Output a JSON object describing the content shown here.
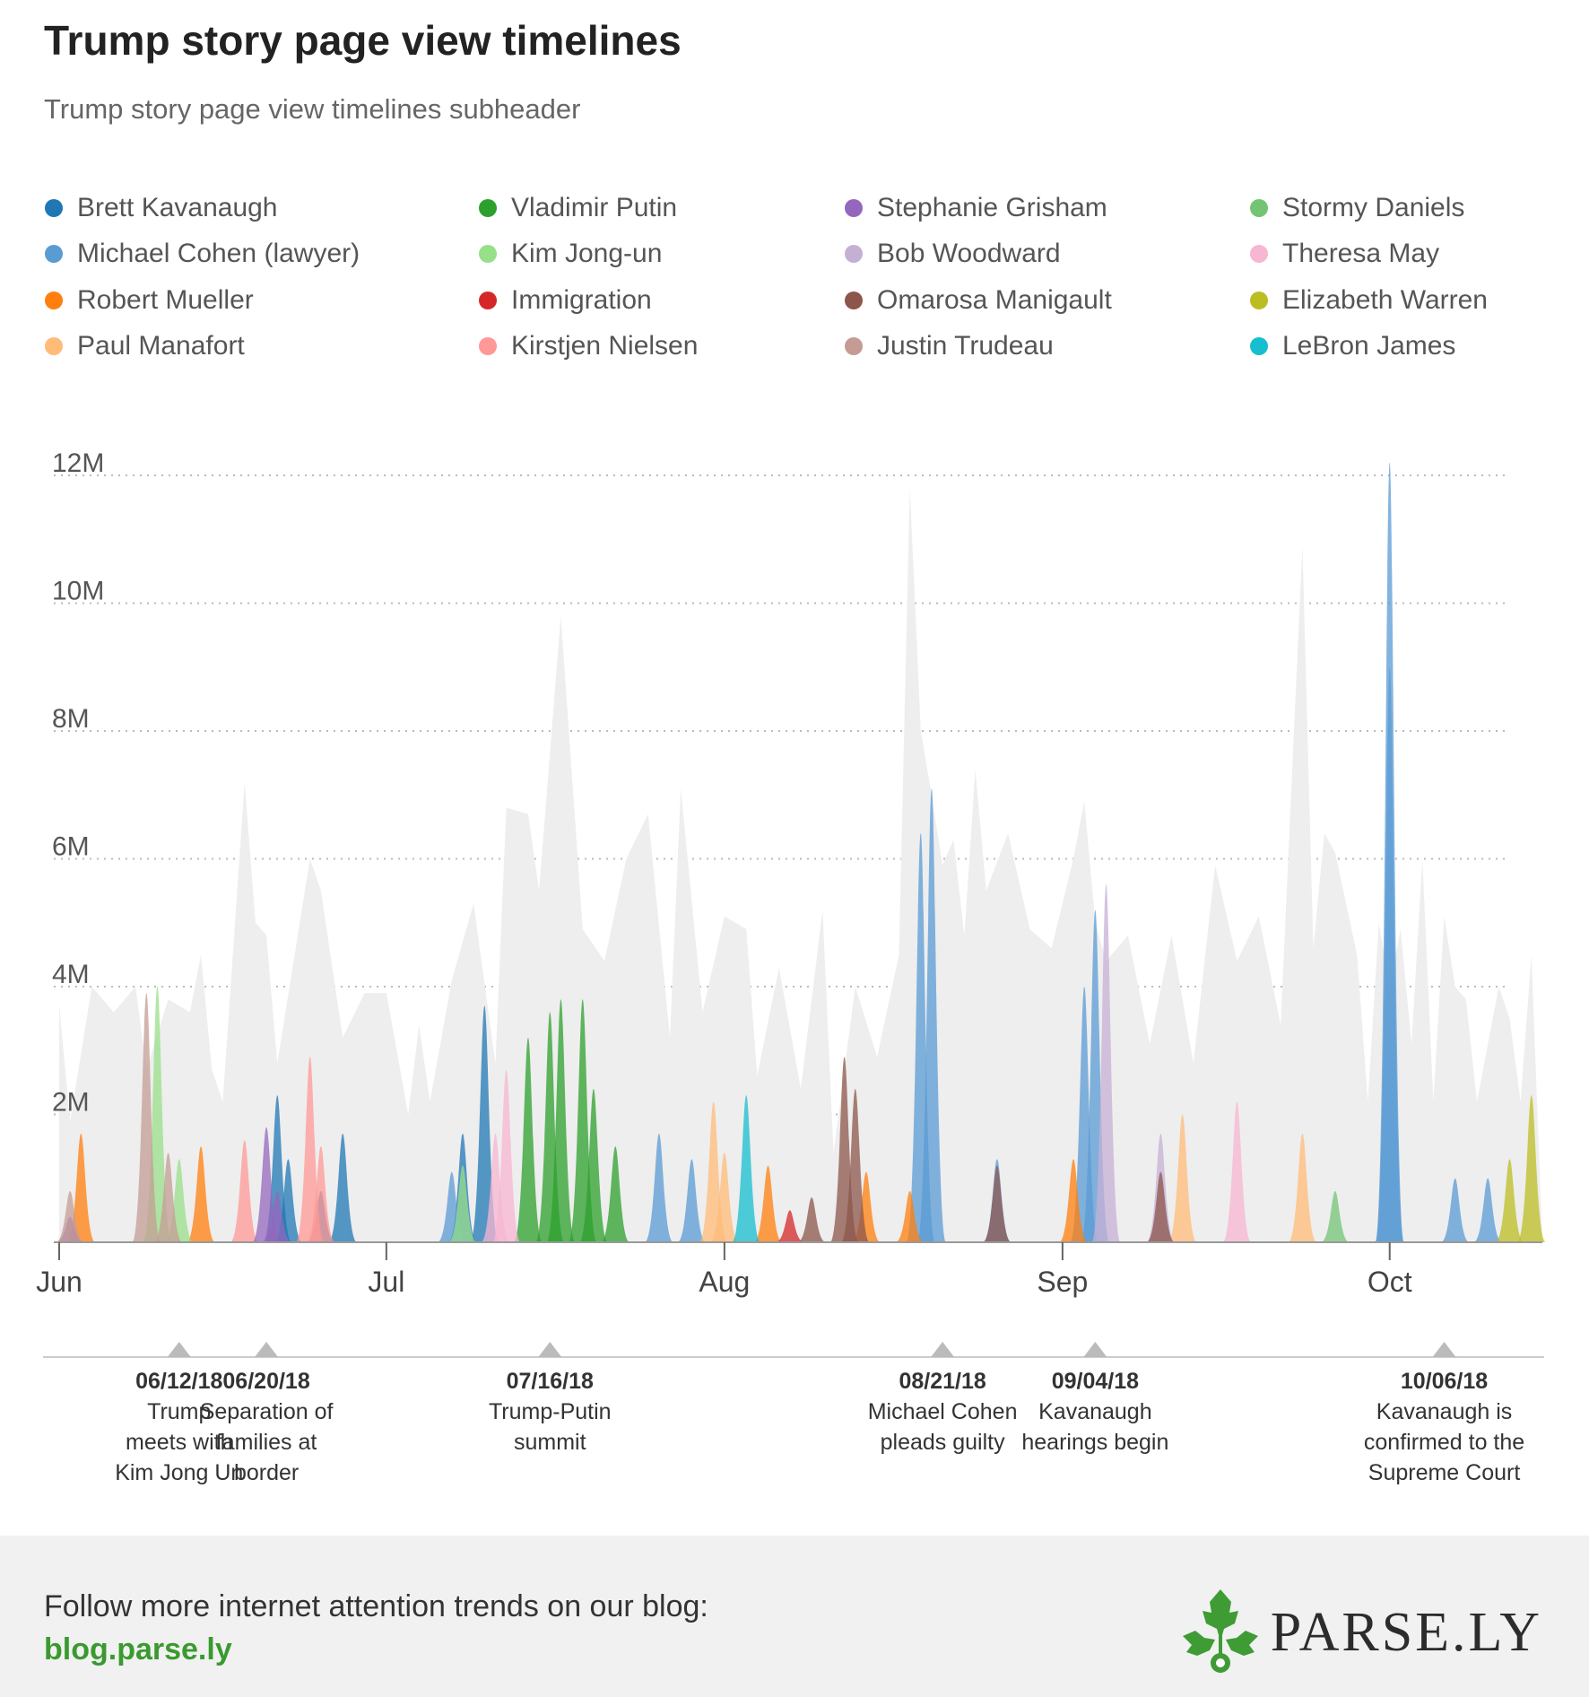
{
  "title": "Trump story page view timelines",
  "subtitle": "Trump story page view timelines subheader",
  "footer": {
    "text": "Follow more internet attention trends on our blog:",
    "link": "blog.parse.ly",
    "brand": "PARSE.LY",
    "brand_icon": "parsley-leaf-icon"
  },
  "colors": {
    "background_total": "#eeeeee",
    "grid": "#bbbbbb",
    "axis": "#999999",
    "link": "#3a9a2f"
  },
  "chart_data": {
    "type": "area",
    "title": "Trump story page view timelines",
    "xlabel": "",
    "ylabel": "",
    "x_range": [
      "2018-06-01",
      "2018-10-15"
    ],
    "ylim": [
      0,
      12000000
    ],
    "y_ticks": [
      {
        "value": 2000000,
        "label": "2M"
      },
      {
        "value": 4000000,
        "label": "4M"
      },
      {
        "value": 6000000,
        "label": "6M"
      },
      {
        "value": 8000000,
        "label": "8M"
      },
      {
        "value": 10000000,
        "label": "10M"
      },
      {
        "value": 12000000,
        "label": "12M"
      }
    ],
    "x_ticks": [
      {
        "date": "2018-06-01",
        "label": "Jun"
      },
      {
        "date": "2018-07-01",
        "label": "Jul"
      },
      {
        "date": "2018-08-01",
        "label": "Aug"
      },
      {
        "date": "2018-09-01",
        "label": "Sep"
      },
      {
        "date": "2018-10-01",
        "label": "Oct"
      }
    ],
    "grid": true,
    "legend_position": "top",
    "total": {
      "x": [
        "2018-06-01",
        "2018-06-02",
        "2018-06-04",
        "2018-06-06",
        "2018-06-08",
        "2018-06-09",
        "2018-06-11",
        "2018-06-13",
        "2018-06-14",
        "2018-06-15",
        "2018-06-16",
        "2018-06-18",
        "2018-06-19",
        "2018-06-20",
        "2018-06-21",
        "2018-06-24",
        "2018-06-25",
        "2018-06-27",
        "2018-06-29",
        "2018-07-01",
        "2018-07-03",
        "2018-07-04",
        "2018-07-05",
        "2018-07-07",
        "2018-07-09",
        "2018-07-11",
        "2018-07-12",
        "2018-07-14",
        "2018-07-15",
        "2018-07-17",
        "2018-07-19",
        "2018-07-21",
        "2018-07-23",
        "2018-07-25",
        "2018-07-27",
        "2018-07-28",
        "2018-07-30",
        "2018-08-01",
        "2018-08-03",
        "2018-08-04",
        "2018-08-06",
        "2018-08-08",
        "2018-08-10",
        "2018-08-11",
        "2018-08-13",
        "2018-08-15",
        "2018-08-17",
        "2018-08-18",
        "2018-08-19",
        "2018-08-20",
        "2018-08-21",
        "2018-08-22",
        "2018-08-23",
        "2018-08-24",
        "2018-08-25",
        "2018-08-27",
        "2018-08-29",
        "2018-08-31",
        "2018-09-02",
        "2018-09-03",
        "2018-09-04",
        "2018-09-05",
        "2018-09-07",
        "2018-09-09",
        "2018-09-11",
        "2018-09-13",
        "2018-09-15",
        "2018-09-17",
        "2018-09-19",
        "2018-09-21",
        "2018-09-23",
        "2018-09-24",
        "2018-09-25",
        "2018-09-26",
        "2018-09-28",
        "2018-09-29",
        "2018-09-30",
        "2018-10-01",
        "2018-10-02",
        "2018-10-03",
        "2018-10-04",
        "2018-10-05",
        "2018-10-06",
        "2018-10-07",
        "2018-10-08",
        "2018-10-09",
        "2018-10-11",
        "2018-10-12",
        "2018-10-13",
        "2018-10-14",
        "2018-10-15"
      ],
      "values": [
        3700000,
        1900000,
        4000000,
        3600000,
        4000000,
        2700000,
        3800000,
        3600000,
        4500000,
        2700000,
        2200000,
        7200000,
        5000000,
        4800000,
        2800000,
        6000000,
        5500000,
        3200000,
        3900000,
        3900000,
        2000000,
        3400000,
        2200000,
        4100000,
        5300000,
        2800000,
        6800000,
        6700000,
        5500000,
        9800000,
        4900000,
        4400000,
        6000000,
        6700000,
        3200000,
        7100000,
        3600000,
        5100000,
        4900000,
        2600000,
        4300000,
        2400000,
        5200000,
        1400000,
        4000000,
        2900000,
        4500000,
        11800000,
        8000000,
        7000000,
        5900000,
        6300000,
        4800000,
        7400000,
        5500000,
        6400000,
        4900000,
        4600000,
        6000000,
        6900000,
        5000000,
        4400000,
        4800000,
        3100000,
        4800000,
        2800000,
        5900000,
        4400000,
        5100000,
        3400000,
        10900000,
        4600000,
        6400000,
        6100000,
        4500000,
        2200000,
        5000000,
        4000000,
        4900000,
        3100000,
        6000000,
        2200000,
        5100000,
        4000000,
        3800000,
        2200000,
        4000000,
        3500000,
        2200000,
        4500000,
        0
      ]
    },
    "series": [
      {
        "name": "Brett Kavanaugh",
        "color": "#1f77b4",
        "peaks": [
          [
            "2018-06-21",
            2300000
          ],
          [
            "2018-06-22",
            1300000
          ],
          [
            "2018-06-25",
            800000
          ],
          [
            "2018-06-27",
            1700000
          ],
          [
            "2018-07-10",
            3700000
          ],
          [
            "2018-07-08",
            1700000
          ]
        ]
      },
      {
        "name": "Michael Cohen (lawyer)",
        "color": "#5a9bd4",
        "peaks": [
          [
            "2018-07-07",
            1100000
          ],
          [
            "2018-07-26",
            1700000
          ],
          [
            "2018-07-29",
            1300000
          ],
          [
            "2018-08-19",
            6400000
          ],
          [
            "2018-08-20",
            7100000
          ],
          [
            "2018-08-26",
            1300000
          ],
          [
            "2018-09-04",
            5200000
          ],
          [
            "2018-09-03",
            4000000
          ],
          [
            "2018-10-01",
            9000000
          ],
          [
            "2018-10-01",
            12200000
          ],
          [
            "2018-10-07",
            1000000
          ],
          [
            "2018-10-10",
            1000000
          ]
        ]
      },
      {
        "name": "Robert Mueller",
        "color": "#ff7f0e",
        "peaks": [
          [
            "2018-06-03",
            1700000
          ],
          [
            "2018-06-14",
            1500000
          ],
          [
            "2018-08-05",
            1200000
          ],
          [
            "2018-08-14",
            1100000
          ],
          [
            "2018-08-18",
            800000
          ],
          [
            "2018-09-02",
            1300000
          ]
        ]
      },
      {
        "name": "Paul Manafort",
        "color": "#ffbb78",
        "peaks": [
          [
            "2018-07-31",
            2200000
          ],
          [
            "2018-08-01",
            1400000
          ],
          [
            "2018-09-12",
            2000000
          ],
          [
            "2018-09-23",
            1700000
          ]
        ]
      },
      {
        "name": "Vladimir Putin",
        "color": "#2ca02c",
        "peaks": [
          [
            "2018-07-14",
            3200000
          ],
          [
            "2018-07-16",
            3600000
          ],
          [
            "2018-07-17",
            3800000
          ],
          [
            "2018-07-19",
            3800000
          ],
          [
            "2018-07-20",
            2400000
          ],
          [
            "2018-07-22",
            1500000
          ]
        ]
      },
      {
        "name": "Kim Jong-un",
        "color": "#98df8a",
        "peaks": [
          [
            "2018-06-10",
            4000000
          ],
          [
            "2018-06-12",
            1300000
          ],
          [
            "2018-07-08",
            1200000
          ]
        ]
      },
      {
        "name": "Immigration",
        "color": "#d62728",
        "peaks": [
          [
            "2018-08-07",
            500000
          ]
        ]
      },
      {
        "name": "Kirstjen Nielsen",
        "color": "#ff9896",
        "peaks": [
          [
            "2018-06-18",
            1600000
          ],
          [
            "2018-06-24",
            2900000
          ],
          [
            "2018-06-25",
            1500000
          ]
        ]
      },
      {
        "name": "Stephanie Grisham",
        "color": "#9467bd",
        "peaks": [
          [
            "2018-06-02",
            400000
          ],
          [
            "2018-06-20",
            1800000
          ],
          [
            "2018-06-21",
            800000
          ]
        ]
      },
      {
        "name": "Bob Woodward",
        "color": "#c5b0d5",
        "peaks": [
          [
            "2018-09-05",
            5600000
          ],
          [
            "2018-09-10",
            1700000
          ]
        ]
      },
      {
        "name": "Omarosa Manigault",
        "color": "#8c564b",
        "peaks": [
          [
            "2018-08-09",
            700000
          ],
          [
            "2018-08-12",
            2900000
          ],
          [
            "2018-08-13",
            2400000
          ],
          [
            "2018-08-26",
            1200000
          ],
          [
            "2018-09-10",
            1100000
          ]
        ]
      },
      {
        "name": "Justin Trudeau",
        "color": "#c49c94",
        "peaks": [
          [
            "2018-06-09",
            3900000
          ],
          [
            "2018-06-11",
            1400000
          ],
          [
            "2018-06-02",
            800000
          ]
        ]
      },
      {
        "name": "Stormy Daniels",
        "color": "#74c476",
        "peaks": [
          [
            "2018-09-26",
            800000
          ]
        ]
      },
      {
        "name": "Theresa May",
        "color": "#f7b6d2",
        "peaks": [
          [
            "2018-07-12",
            2700000
          ],
          [
            "2018-07-11",
            1700000
          ],
          [
            "2018-09-17",
            2200000
          ]
        ]
      },
      {
        "name": "Elizabeth Warren",
        "color": "#bcbd22",
        "peaks": [
          [
            "2018-10-14",
            2300000
          ],
          [
            "2018-10-12",
            1300000
          ]
        ]
      },
      {
        "name": "LeBron James",
        "color": "#17becf",
        "peaks": [
          [
            "2018-08-03",
            2300000
          ]
        ]
      }
    ],
    "events": [
      {
        "date": "06/12/18",
        "x": "2018-06-12",
        "label": "Trump meets with Kim Jong Un",
        "lines": [
          "Trump",
          "meets with",
          "Kim Jong Un"
        ]
      },
      {
        "date": "06/20/18",
        "x": "2018-06-20",
        "label": "Separation of families at border",
        "lines": [
          "Separation of",
          "families at",
          "border"
        ]
      },
      {
        "date": "07/16/18",
        "x": "2018-07-16",
        "label": "Trump-Putin summit",
        "lines": [
          "Trump-Putin",
          "summit"
        ]
      },
      {
        "date": "08/21/18",
        "x": "2018-08-21",
        "label": "Michael Cohen pleads guilty",
        "lines": [
          "Michael Cohen",
          "pleads guilty"
        ]
      },
      {
        "date": "09/04/18",
        "x": "2018-09-04",
        "label": "Kavanaugh hearings begin",
        "lines": [
          "Kavanaugh",
          "hearings begin"
        ]
      },
      {
        "date": "10/06/18",
        "x": "2018-10-06",
        "label": "Kavanaugh is confirmed to the Supreme Court",
        "lines": [
          "Kavanaugh is",
          "confirmed to the",
          "Supreme Court"
        ]
      }
    ]
  }
}
